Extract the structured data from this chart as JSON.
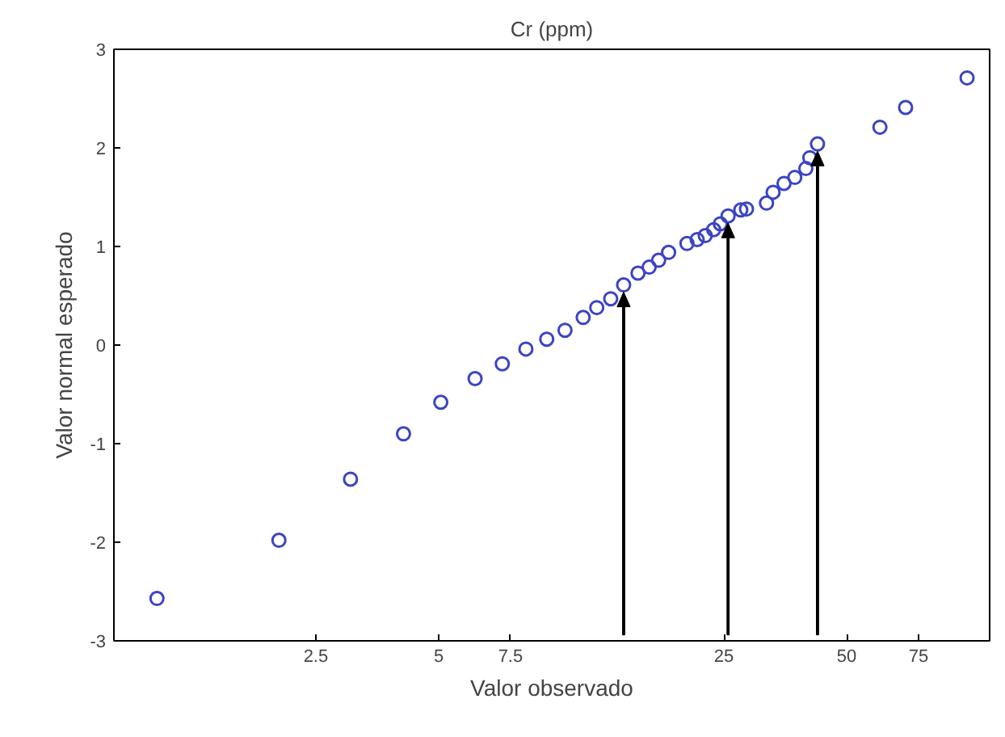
{
  "chart_data": {
    "type": "scatter",
    "title": "Cr (ppm)",
    "xlabel": "Valor observado",
    "ylabel": "Valor normal esperado",
    "log": "x",
    "grid": false,
    "marker": "circle",
    "xlim": [
      0.8,
      112
    ],
    "xticks": [
      2.5,
      5,
      7.5,
      25,
      50,
      75
    ],
    "ylim": [
      -3,
      3
    ],
    "yticks": [
      -3,
      -2,
      -1,
      0,
      1,
      2,
      3
    ],
    "x": [
      1.02,
      2.03,
      3.04,
      4.1,
      5.06,
      6.14,
      7.16,
      8.18,
      9.2,
      10.2,
      11.3,
      12.2,
      13.2,
      14.2,
      15.4,
      16.4,
      17.3,
      18.3,
      20.3,
      21.5,
      22.5,
      23.6,
      24.5,
      25.6,
      27.5,
      28.4,
      31.8,
      33.0,
      35.1,
      37.3,
      39.7,
      40.6,
      42.4,
      60.3,
      69.7,
      98.6
    ],
    "series": [
      {
        "color": "#3b44c4",
        "values": [
          -2.57,
          -1.98,
          -1.36,
          -0.9,
          -0.58,
          -0.34,
          -0.19,
          -0.04,
          0.06,
          0.15,
          0.28,
          0.38,
          0.47,
          0.61,
          0.73,
          0.79,
          0.86,
          0.94,
          1.03,
          1.07,
          1.11,
          1.17,
          1.23,
          1.31,
          1.37,
          1.38,
          1.44,
          1.55,
          1.64,
          1.7,
          1.79,
          1.9,
          2.04,
          2.21,
          2.41,
          2.71
        ]
      }
    ],
    "ref_lines": [
      {
        "axis": "x",
        "value": 14.2,
        "color": "#000000"
      },
      {
        "axis": "x",
        "value": 25.6,
        "color": "#000000"
      },
      {
        "axis": "x",
        "value": 42.4,
        "color": "#000000"
      }
    ]
  }
}
